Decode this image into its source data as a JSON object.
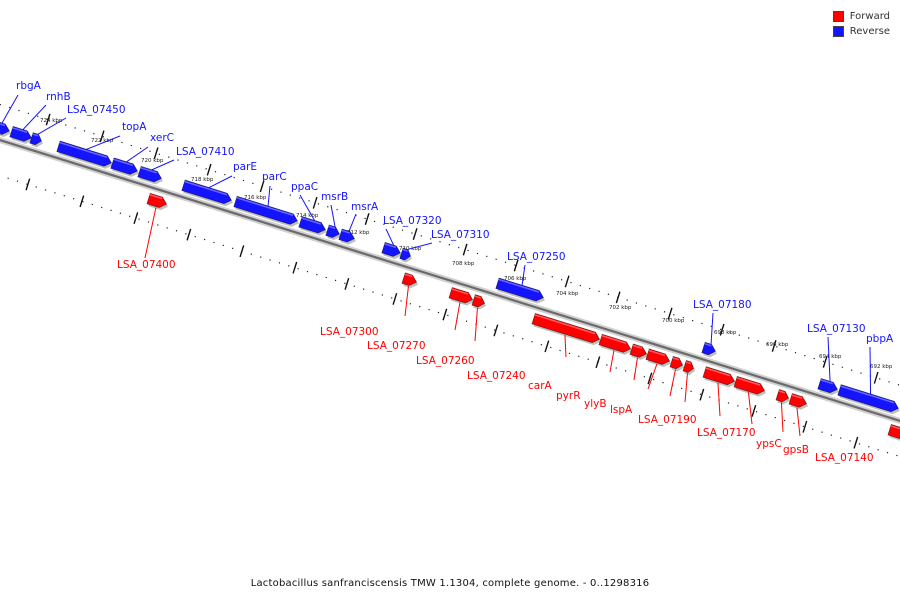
{
  "legend": {
    "forward_label": "Forward",
    "reverse_label": "Reverse",
    "forward_color": "#ff0000",
    "reverse_color": "#1414ff"
  },
  "caption": "Lactobacillus sanfranciscensis TMW 1.1304, complete genome. - 0..1298316",
  "colors": {
    "forward": "#ff0000",
    "reverse": "#1414ff",
    "backbone": "#888888"
  },
  "ticks": [
    "724 kbp",
    "722 kbp",
    "720 kbp",
    "718 kbp",
    "716 kbp",
    "714 kbp",
    "712 kbp",
    "710 kbp",
    "708 kbp",
    "706 kbp",
    "704 kbp",
    "702 kbp",
    "700 kbp",
    "698 kbp",
    "696 kbp",
    "694 kbp",
    "692 kbp"
  ],
  "genes_reverse": [
    "rbgA",
    "rnhB",
    "LSA_07450",
    "topA",
    "xerC",
    "LSA_07410",
    "parE",
    "parC",
    "ppaC",
    "msrB",
    "msrA",
    "LSA_07320",
    "LSA_07310",
    "LSA_07250",
    "LSA_07180",
    "LSA_07130",
    "pbpA"
  ],
  "genes_forward": [
    "LSA_07400",
    "LSA_07300",
    "LSA_07270",
    "LSA_07260",
    "LSA_07240",
    "carA",
    "pyrR",
    "ylyB",
    "lspA",
    "LSA_07190",
    "LSA_07170",
    "ypsC",
    "gpsB",
    "LSA_07140"
  ]
}
